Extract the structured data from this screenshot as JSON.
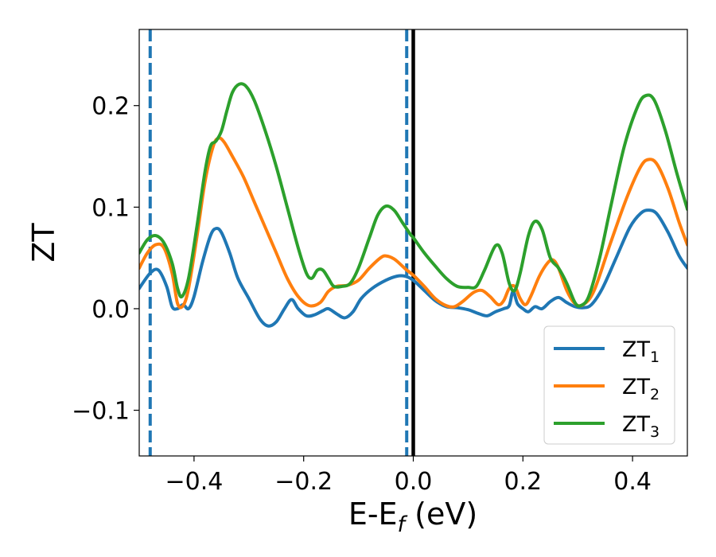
{
  "chart_data": {
    "type": "line",
    "xlabel": "E-E",
    "xlabel_subscript": "f",
    "xlabel_unit": " (eV)",
    "ylabel": "ZT",
    "xlim": [
      -0.5,
      0.5
    ],
    "ylim": [
      -0.145,
      0.275
    ],
    "xticks": [
      -0.4,
      -0.2,
      0.0,
      0.2,
      0.4
    ],
    "xtick_labels": [
      "−0.4",
      "−0.2",
      "0.0",
      "0.2",
      "0.4"
    ],
    "yticks": [
      -0.1,
      0.0,
      0.1,
      0.2
    ],
    "ytick_labels": [
      "−0.1",
      "0.0",
      "0.1",
      "0.2"
    ],
    "grid": false,
    "legend_position": "bottom-right",
    "vlines": [
      {
        "x": -0.48,
        "style": "dashed",
        "color": "#1f77b4"
      },
      {
        "x": -0.012,
        "style": "dashed",
        "color": "#1f77b4"
      },
      {
        "x": 0.0,
        "style": "solid",
        "color": "#000000"
      }
    ],
    "series": [
      {
        "name": "ZT",
        "subscript": "1",
        "color": "#1f77b4",
        "points": [
          [
            -0.5,
            0.02
          ],
          [
            -0.48,
            0.035
          ],
          [
            -0.465,
            0.038
          ],
          [
            -0.45,
            0.022
          ],
          [
            -0.44,
            0.002
          ],
          [
            -0.43,
            0.0
          ],
          [
            -0.42,
            0.004
          ],
          [
            -0.41,
            0.0
          ],
          [
            -0.4,
            0.012
          ],
          [
            -0.385,
            0.045
          ],
          [
            -0.37,
            0.072
          ],
          [
            -0.36,
            0.079
          ],
          [
            -0.35,
            0.075
          ],
          [
            -0.335,
            0.055
          ],
          [
            -0.32,
            0.03
          ],
          [
            -0.3,
            0.01
          ],
          [
            -0.28,
            -0.01
          ],
          [
            -0.265,
            -0.017
          ],
          [
            -0.25,
            -0.013
          ],
          [
            -0.235,
            0.0
          ],
          [
            -0.222,
            0.009
          ],
          [
            -0.21,
            0.0
          ],
          [
            -0.195,
            -0.007
          ],
          [
            -0.18,
            -0.006
          ],
          [
            -0.165,
            -0.002
          ],
          [
            -0.155,
            0.0
          ],
          [
            -0.14,
            -0.005
          ],
          [
            -0.125,
            -0.009
          ],
          [
            -0.11,
            -0.003
          ],
          [
            -0.095,
            0.01
          ],
          [
            -0.075,
            0.02
          ],
          [
            -0.05,
            0.028
          ],
          [
            -0.03,
            0.032
          ],
          [
            -0.015,
            0.032
          ],
          [
            0.0,
            0.028
          ],
          [
            0.02,
            0.018
          ],
          [
            0.04,
            0.008
          ],
          [
            0.06,
            0.002
          ],
          [
            0.08,
            0.001
          ],
          [
            0.1,
            -0.001
          ],
          [
            0.12,
            -0.005
          ],
          [
            0.135,
            -0.007
          ],
          [
            0.15,
            -0.003
          ],
          [
            0.165,
            0.0
          ],
          [
            0.175,
            0.003
          ],
          [
            0.182,
            0.017
          ],
          [
            0.19,
            0.005
          ],
          [
            0.2,
            0.0
          ],
          [
            0.21,
            -0.003
          ],
          [
            0.222,
            0.002
          ],
          [
            0.235,
            0.0
          ],
          [
            0.25,
            0.007
          ],
          [
            0.265,
            0.011
          ],
          [
            0.28,
            0.006
          ],
          [
            0.295,
            0.002
          ],
          [
            0.31,
            0.001
          ],
          [
            0.325,
            0.004
          ],
          [
            0.345,
            0.02
          ],
          [
            0.37,
            0.05
          ],
          [
            0.395,
            0.08
          ],
          [
            0.415,
            0.094
          ],
          [
            0.43,
            0.097
          ],
          [
            0.445,
            0.093
          ],
          [
            0.465,
            0.075
          ],
          [
            0.485,
            0.052
          ],
          [
            0.5,
            0.04
          ]
        ]
      },
      {
        "name": "ZT",
        "subscript": "2",
        "color": "#ff7f0e",
        "points": [
          [
            -0.5,
            0.04
          ],
          [
            -0.485,
            0.055
          ],
          [
            -0.47,
            0.063
          ],
          [
            -0.455,
            0.06
          ],
          [
            -0.44,
            0.035
          ],
          [
            -0.43,
            0.005
          ],
          [
            -0.42,
            0.003
          ],
          [
            -0.41,
            0.02
          ],
          [
            -0.395,
            0.07
          ],
          [
            -0.38,
            0.125
          ],
          [
            -0.365,
            0.16
          ],
          [
            -0.355,
            0.168
          ],
          [
            -0.345,
            0.164
          ],
          [
            -0.33,
            0.15
          ],
          [
            -0.31,
            0.13
          ],
          [
            -0.29,
            0.105
          ],
          [
            -0.27,
            0.08
          ],
          [
            -0.25,
            0.055
          ],
          [
            -0.23,
            0.03
          ],
          [
            -0.21,
            0.012
          ],
          [
            -0.19,
            0.003
          ],
          [
            -0.17,
            0.006
          ],
          [
            -0.155,
            0.017
          ],
          [
            -0.14,
            0.022
          ],
          [
            -0.12,
            0.023
          ],
          [
            -0.1,
            0.028
          ],
          [
            -0.08,
            0.04
          ],
          [
            -0.06,
            0.05
          ],
          [
            -0.05,
            0.052
          ],
          [
            -0.035,
            0.049
          ],
          [
            -0.02,
            0.042
          ],
          [
            -0.012,
            0.038
          ],
          [
            0.0,
            0.033
          ],
          [
            0.02,
            0.022
          ],
          [
            0.04,
            0.01
          ],
          [
            0.06,
            0.003
          ],
          [
            0.075,
            0.002
          ],
          [
            0.09,
            0.007
          ],
          [
            0.11,
            0.016
          ],
          [
            0.125,
            0.018
          ],
          [
            0.14,
            0.012
          ],
          [
            0.155,
            0.004
          ],
          [
            0.165,
            0.008
          ],
          [
            0.175,
            0.02
          ],
          [
            0.185,
            0.022
          ],
          [
            0.195,
            0.01
          ],
          [
            0.205,
            0.004
          ],
          [
            0.215,
            0.013
          ],
          [
            0.23,
            0.032
          ],
          [
            0.245,
            0.045
          ],
          [
            0.255,
            0.048
          ],
          [
            0.265,
            0.04
          ],
          [
            0.28,
            0.018
          ],
          [
            0.295,
            0.005
          ],
          [
            0.31,
            0.004
          ],
          [
            0.33,
            0.018
          ],
          [
            0.36,
            0.065
          ],
          [
            0.39,
            0.11
          ],
          [
            0.415,
            0.14
          ],
          [
            0.43,
            0.147
          ],
          [
            0.445,
            0.142
          ],
          [
            0.465,
            0.118
          ],
          [
            0.485,
            0.085
          ],
          [
            0.5,
            0.063
          ]
        ]
      },
      {
        "name": "ZT",
        "subscript": "3",
        "color": "#2ca02c",
        "points": [
          [
            -0.5,
            0.055
          ],
          [
            -0.485,
            0.068
          ],
          [
            -0.47,
            0.072
          ],
          [
            -0.455,
            0.065
          ],
          [
            -0.44,
            0.045
          ],
          [
            -0.43,
            0.02
          ],
          [
            -0.422,
            0.012
          ],
          [
            -0.41,
            0.03
          ],
          [
            -0.395,
            0.08
          ],
          [
            -0.38,
            0.135
          ],
          [
            -0.37,
            0.16
          ],
          [
            -0.36,
            0.165
          ],
          [
            -0.35,
            0.175
          ],
          [
            -0.34,
            0.195
          ],
          [
            -0.33,
            0.213
          ],
          [
            -0.318,
            0.221
          ],
          [
            -0.305,
            0.219
          ],
          [
            -0.29,
            0.205
          ],
          [
            -0.27,
            0.175
          ],
          [
            -0.25,
            0.14
          ],
          [
            -0.23,
            0.1
          ],
          [
            -0.21,
            0.06
          ],
          [
            -0.195,
            0.035
          ],
          [
            -0.185,
            0.03
          ],
          [
            -0.175,
            0.038
          ],
          [
            -0.165,
            0.038
          ],
          [
            -0.155,
            0.03
          ],
          [
            -0.145,
            0.022
          ],
          [
            -0.13,
            0.022
          ],
          [
            -0.115,
            0.025
          ],
          [
            -0.1,
            0.04
          ],
          [
            -0.08,
            0.07
          ],
          [
            -0.065,
            0.092
          ],
          [
            -0.05,
            0.101
          ],
          [
            -0.035,
            0.097
          ],
          [
            -0.02,
            0.085
          ],
          [
            -0.005,
            0.073
          ],
          [
            0.0,
            0.07
          ],
          [
            0.02,
            0.055
          ],
          [
            0.04,
            0.042
          ],
          [
            0.06,
            0.03
          ],
          [
            0.08,
            0.022
          ],
          [
            0.1,
            0.021
          ],
          [
            0.115,
            0.022
          ],
          [
            0.13,
            0.038
          ],
          [
            0.15,
            0.062
          ],
          [
            0.162,
            0.055
          ],
          [
            0.175,
            0.025
          ],
          [
            0.185,
            0.018
          ],
          [
            0.195,
            0.035
          ],
          [
            0.21,
            0.072
          ],
          [
            0.222,
            0.086
          ],
          [
            0.235,
            0.078
          ],
          [
            0.25,
            0.05
          ],
          [
            0.265,
            0.04
          ],
          [
            0.28,
            0.025
          ],
          [
            0.295,
            0.006
          ],
          [
            0.305,
            0.003
          ],
          [
            0.32,
            0.012
          ],
          [
            0.34,
            0.05
          ],
          [
            0.36,
            0.1
          ],
          [
            0.385,
            0.16
          ],
          [
            0.41,
            0.2
          ],
          [
            0.425,
            0.21
          ],
          [
            0.44,
            0.205
          ],
          [
            0.46,
            0.175
          ],
          [
            0.48,
            0.135
          ],
          [
            0.5,
            0.098
          ]
        ]
      }
    ]
  }
}
